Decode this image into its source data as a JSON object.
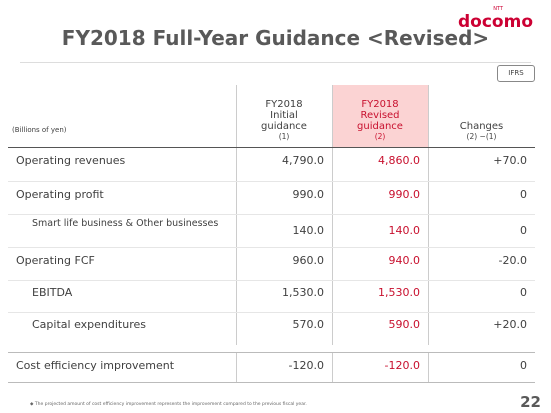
{
  "header": {
    "logo_small": "NTT",
    "logo": "docomo",
    "title": "FY2018 Full-Year Guidance <Revised>",
    "badge": "IFRS"
  },
  "table": {
    "unit": "(Billions of yen)",
    "columns": [
      {
        "label": "FY2018 Initial guidance",
        "note": "(1)"
      },
      {
        "label": "FY2018 Revised guidance",
        "note": "(2)"
      },
      {
        "label": "Changes",
        "note": "(2) −(1)"
      }
    ],
    "rows": [
      [
        "Operating revenues",
        "4,790.0",
        "4,860.0",
        "+70.0"
      ],
      [
        "Operating profit",
        "990.0",
        "990.0",
        "0"
      ],
      [
        "Smart life business & Other businesses",
        "140.0",
        "140.0",
        "0"
      ],
      [
        "Operating FCF",
        "960.0",
        "940.0",
        "-20.0"
      ],
      [
        "EBITDA",
        "1,530.0",
        "1,530.0",
        "0"
      ],
      [
        "Capital expenditures",
        "570.0",
        "590.0",
        "+20.0"
      ],
      [
        "Cost efficiency improvement",
        "-120.0",
        "-120.0",
        "0"
      ]
    ]
  },
  "footnote": "The projected amount of cost efficiency improvement represents the improvement compared to the previous fiscal year.",
  "page_number": "22"
}
